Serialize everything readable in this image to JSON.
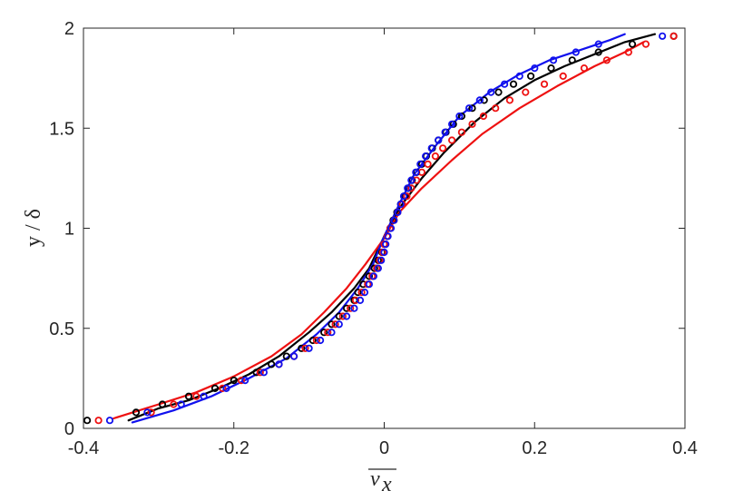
{
  "chart_data": {
    "type": "line",
    "title": "",
    "xlabel": "v_x (overlined)",
    "ylabel": "y / δ",
    "xlim": [
      -0.4,
      0.4
    ],
    "ylim": [
      0,
      2
    ],
    "xticks": [
      -0.4,
      -0.2,
      0,
      0.2,
      0.4
    ],
    "xtick_labels": [
      "-0.4",
      "-0.2",
      "0",
      "0.2",
      "0.4"
    ],
    "yticks": [
      0,
      0.5,
      1,
      1.5,
      2
    ],
    "ytick_labels": [
      "0",
      "0.5",
      "1",
      "1.5",
      "2"
    ],
    "grid": false,
    "legend": "none",
    "colors": {
      "black": "#000000",
      "red": "#ee1111",
      "blue": "#1111ee",
      "axis": "#262626"
    },
    "series": [
      {
        "kind": "line",
        "color": "black",
        "points": [
          [
            -0.34,
            0.04
          ],
          [
            -0.3,
            0.1
          ],
          [
            -0.26,
            0.14
          ],
          [
            -0.22,
            0.2
          ],
          [
            -0.18,
            0.27
          ],
          [
            -0.14,
            0.36
          ],
          [
            -0.1,
            0.48
          ],
          [
            -0.07,
            0.58
          ],
          [
            -0.04,
            0.7
          ],
          [
            -0.02,
            0.8
          ],
          [
            0.0,
            0.96
          ],
          [
            0.02,
            1.1
          ],
          [
            0.05,
            1.25
          ],
          [
            0.08,
            1.38
          ],
          [
            0.12,
            1.53
          ],
          [
            0.16,
            1.65
          ],
          [
            0.2,
            1.74
          ],
          [
            0.24,
            1.81
          ],
          [
            0.28,
            1.87
          ],
          [
            0.32,
            1.93
          ],
          [
            0.36,
            1.97
          ]
        ]
      },
      {
        "kind": "line",
        "color": "red",
        "points": [
          [
            -0.36,
            0.05
          ],
          [
            -0.3,
            0.12
          ],
          [
            -0.25,
            0.18
          ],
          [
            -0.2,
            0.26
          ],
          [
            -0.15,
            0.36
          ],
          [
            -0.11,
            0.47
          ],
          [
            -0.08,
            0.58
          ],
          [
            -0.05,
            0.7
          ],
          [
            -0.025,
            0.82
          ],
          [
            0.0,
            0.95
          ],
          [
            0.02,
            1.08
          ],
          [
            0.05,
            1.2
          ],
          [
            0.09,
            1.34
          ],
          [
            0.13,
            1.47
          ],
          [
            0.18,
            1.6
          ],
          [
            0.23,
            1.71
          ],
          [
            0.28,
            1.81
          ],
          [
            0.32,
            1.88
          ],
          [
            0.345,
            1.93
          ]
        ]
      },
      {
        "kind": "line",
        "color": "blue",
        "points": [
          [
            -0.335,
            0.03
          ],
          [
            -0.28,
            0.09
          ],
          [
            -0.23,
            0.16
          ],
          [
            -0.18,
            0.25
          ],
          [
            -0.13,
            0.35
          ],
          [
            -0.09,
            0.47
          ],
          [
            -0.06,
            0.58
          ],
          [
            -0.035,
            0.7
          ],
          [
            -0.015,
            0.82
          ],
          [
            0.0,
            0.96
          ],
          [
            0.02,
            1.12
          ],
          [
            0.04,
            1.27
          ],
          [
            0.07,
            1.42
          ],
          [
            0.1,
            1.56
          ],
          [
            0.14,
            1.68
          ],
          [
            0.18,
            1.77
          ],
          [
            0.22,
            1.84
          ],
          [
            0.26,
            1.89
          ],
          [
            0.3,
            1.94
          ],
          [
            0.32,
            1.97
          ]
        ]
      },
      {
        "kind": "markers",
        "color": "black",
        "points": [
          [
            -0.395,
            0.04
          ],
          [
            -0.33,
            0.08
          ],
          [
            -0.295,
            0.12
          ],
          [
            -0.26,
            0.16
          ],
          [
            -0.225,
            0.2
          ],
          [
            -0.2,
            0.24
          ],
          [
            -0.17,
            0.28
          ],
          [
            -0.15,
            0.32
          ],
          [
            -0.13,
            0.36
          ],
          [
            -0.11,
            0.4
          ],
          [
            -0.095,
            0.44
          ],
          [
            -0.08,
            0.48
          ],
          [
            -0.07,
            0.52
          ],
          [
            -0.06,
            0.56
          ],
          [
            -0.05,
            0.6
          ],
          [
            -0.04,
            0.64
          ],
          [
            -0.035,
            0.68
          ],
          [
            -0.028,
            0.72
          ],
          [
            -0.02,
            0.76
          ],
          [
            -0.013,
            0.8
          ],
          [
            -0.008,
            0.84
          ],
          [
            -0.003,
            0.88
          ],
          [
            0.0,
            0.92
          ],
          [
            0.004,
            0.96
          ],
          [
            0.008,
            1.0
          ],
          [
            0.012,
            1.04
          ],
          [
            0.017,
            1.08
          ],
          [
            0.022,
            1.12
          ],
          [
            0.027,
            1.16
          ],
          [
            0.032,
            1.2
          ],
          [
            0.037,
            1.24
          ],
          [
            0.043,
            1.28
          ],
          [
            0.05,
            1.32
          ],
          [
            0.056,
            1.36
          ],
          [
            0.064,
            1.4
          ],
          [
            0.072,
            1.44
          ],
          [
            0.082,
            1.48
          ],
          [
            0.092,
            1.52
          ],
          [
            0.103,
            1.56
          ],
          [
            0.117,
            1.6
          ],
          [
            0.133,
            1.64
          ],
          [
            0.152,
            1.68
          ],
          [
            0.172,
            1.72
          ],
          [
            0.195,
            1.76
          ],
          [
            0.222,
            1.8
          ],
          [
            0.25,
            1.84
          ],
          [
            0.285,
            1.88
          ],
          [
            0.33,
            1.92
          ],
          [
            0.385,
            1.96
          ]
        ]
      },
      {
        "kind": "markers",
        "color": "red",
        "points": [
          [
            -0.38,
            0.04
          ],
          [
            -0.31,
            0.08
          ],
          [
            -0.28,
            0.12
          ],
          [
            -0.25,
            0.16
          ],
          [
            -0.215,
            0.2
          ],
          [
            -0.19,
            0.24
          ],
          [
            -0.165,
            0.28
          ],
          [
            -0.14,
            0.32
          ],
          [
            -0.12,
            0.36
          ],
          [
            -0.105,
            0.4
          ],
          [
            -0.09,
            0.44
          ],
          [
            -0.075,
            0.48
          ],
          [
            -0.065,
            0.52
          ],
          [
            -0.055,
            0.56
          ],
          [
            -0.045,
            0.6
          ],
          [
            -0.038,
            0.64
          ],
          [
            -0.03,
            0.68
          ],
          [
            -0.022,
            0.72
          ],
          [
            -0.016,
            0.76
          ],
          [
            -0.01,
            0.8
          ],
          [
            -0.006,
            0.84
          ],
          [
            -0.002,
            0.88
          ],
          [
            0.0,
            0.92
          ],
          [
            0.004,
            0.96
          ],
          [
            0.008,
            1.0
          ],
          [
            0.013,
            1.04
          ],
          [
            0.018,
            1.08
          ],
          [
            0.024,
            1.12
          ],
          [
            0.03,
            1.16
          ],
          [
            0.036,
            1.2
          ],
          [
            0.043,
            1.24
          ],
          [
            0.05,
            1.28
          ],
          [
            0.058,
            1.32
          ],
          [
            0.068,
            1.36
          ],
          [
            0.078,
            1.4
          ],
          [
            0.09,
            1.44
          ],
          [
            0.103,
            1.48
          ],
          [
            0.117,
            1.52
          ],
          [
            0.132,
            1.56
          ],
          [
            0.148,
            1.6
          ],
          [
            0.167,
            1.64
          ],
          [
            0.188,
            1.68
          ],
          [
            0.213,
            1.72
          ],
          [
            0.238,
            1.76
          ],
          [
            0.266,
            1.8
          ],
          [
            0.296,
            1.84
          ],
          [
            0.325,
            1.88
          ],
          [
            0.348,
            1.92
          ],
          [
            0.385,
            1.96
          ]
        ]
      },
      {
        "kind": "markers",
        "color": "blue",
        "points": [
          [
            -0.365,
            0.04
          ],
          [
            -0.315,
            0.08
          ],
          [
            -0.27,
            0.12
          ],
          [
            -0.24,
            0.16
          ],
          [
            -0.21,
            0.2
          ],
          [
            -0.185,
            0.24
          ],
          [
            -0.16,
            0.28
          ],
          [
            -0.14,
            0.32
          ],
          [
            -0.12,
            0.36
          ],
          [
            -0.1,
            0.4
          ],
          [
            -0.085,
            0.44
          ],
          [
            -0.07,
            0.48
          ],
          [
            -0.06,
            0.52
          ],
          [
            -0.05,
            0.56
          ],
          [
            -0.04,
            0.6
          ],
          [
            -0.032,
            0.64
          ],
          [
            -0.026,
            0.68
          ],
          [
            -0.02,
            0.72
          ],
          [
            -0.014,
            0.76
          ],
          [
            -0.008,
            0.8
          ],
          [
            -0.004,
            0.84
          ],
          [
            0.0,
            0.88
          ],
          [
            0.002,
            0.92
          ],
          [
            0.005,
            0.96
          ],
          [
            0.009,
            1.0
          ],
          [
            0.013,
            1.04
          ],
          [
            0.018,
            1.08
          ],
          [
            0.022,
            1.12
          ],
          [
            0.026,
            1.16
          ],
          [
            0.031,
            1.2
          ],
          [
            0.036,
            1.24
          ],
          [
            0.042,
            1.28
          ],
          [
            0.048,
            1.32
          ],
          [
            0.055,
            1.36
          ],
          [
            0.063,
            1.4
          ],
          [
            0.072,
            1.44
          ],
          [
            0.081,
            1.48
          ],
          [
            0.09,
            1.52
          ],
          [
            0.1,
            1.56
          ],
          [
            0.113,
            1.6
          ],
          [
            0.127,
            1.64
          ],
          [
            0.142,
            1.68
          ],
          [
            0.16,
            1.72
          ],
          [
            0.18,
            1.76
          ],
          [
            0.2,
            1.8
          ],
          [
            0.225,
            1.84
          ],
          [
            0.255,
            1.88
          ],
          [
            0.285,
            1.92
          ],
          [
            0.37,
            1.96
          ]
        ]
      }
    ]
  }
}
